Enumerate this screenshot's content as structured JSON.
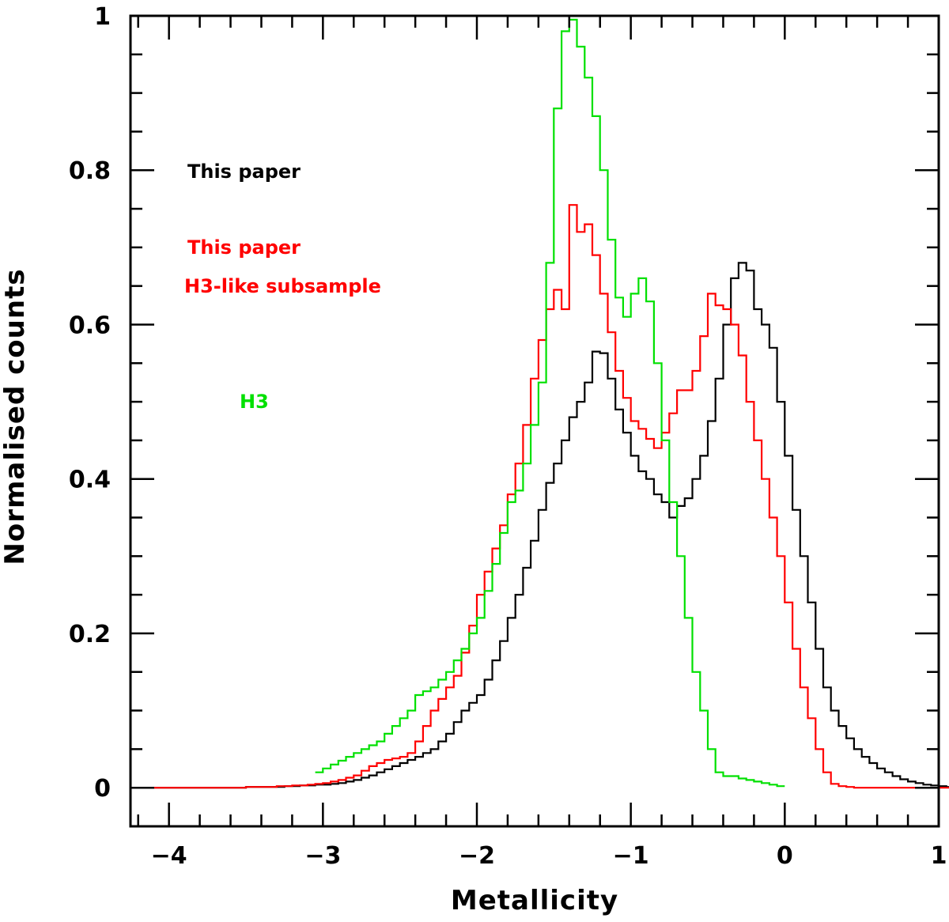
{
  "chart_data": {
    "type": "line",
    "step": true,
    "title": "",
    "xlabel": "Metallicity",
    "ylabel": "Normalised counts",
    "xlim": [
      -4.25,
      1.0
    ],
    "ylim": [
      -0.05,
      1.0
    ],
    "x_major_ticks": [
      -4,
      -3,
      -2,
      -1,
      0,
      1
    ],
    "x_tick_labels": [
      "−4",
      "−3",
      "−2",
      "−1",
      "0",
      "1"
    ],
    "x_minor_step": 0.2,
    "y_major_ticks": [
      0,
      0.2,
      0.4,
      0.6,
      0.8,
      1
    ],
    "y_tick_labels": [
      "0",
      "0.2",
      "0.4",
      "0.6",
      "0.8",
      "1"
    ],
    "y_minor_step": 0.05,
    "legend": [
      {
        "text": "This paper",
        "color": "#000000"
      },
      {
        "text": "This paper",
        "color": "#ff0000"
      },
      {
        "text": "H3-like subsample",
        "color": "#ff0000"
      },
      {
        "text": "H3",
        "color": "#00e000"
      }
    ],
    "series": [
      {
        "name": "This paper",
        "color": "#000000",
        "bin_width": 0.05,
        "x_start": -4.15,
        "values": [
          0,
          0,
          0,
          0,
          0,
          0,
          0,
          0,
          0,
          0,
          0,
          0,
          0,
          0.001,
          0.001,
          0.001,
          0.001,
          0.001,
          0.002,
          0.002,
          0.003,
          0.003,
          0.004,
          0.004,
          0.005,
          0.006,
          0.008,
          0.01,
          0.013,
          0.016,
          0.02,
          0.024,
          0.028,
          0.032,
          0.036,
          0.04,
          0.045,
          0.05,
          0.06,
          0.07,
          0.085,
          0.1,
          0.11,
          0.12,
          0.14,
          0.165,
          0.19,
          0.22,
          0.25,
          0.285,
          0.32,
          0.36,
          0.395,
          0.42,
          0.45,
          0.48,
          0.5,
          0.525,
          0.565,
          0.563,
          0.53,
          0.49,
          0.46,
          0.43,
          0.41,
          0.4,
          0.38,
          0.37,
          0.35,
          0.365,
          0.375,
          0.4,
          0.43,
          0.475,
          0.53,
          0.6,
          0.66,
          0.68,
          0.67,
          0.62,
          0.6,
          0.57,
          0.5,
          0.43,
          0.36,
          0.3,
          0.24,
          0.18,
          0.13,
          0.1,
          0.08,
          0.064,
          0.05,
          0.04,
          0.032,
          0.025,
          0.02,
          0.015,
          0.011,
          0.008,
          0.006,
          0.004,
          0.003,
          0.002,
          0.001,
          0.0005,
          0
        ]
      },
      {
        "name": "This paper — H3-like subsample",
        "color": "#ff0000",
        "bin_width": 0.05,
        "x_start": -4.15,
        "values": [
          0,
          0,
          0,
          0,
          0,
          0,
          0,
          0,
          0,
          0,
          0,
          0,
          0,
          0.001,
          0.001,
          0.001,
          0.001,
          0.002,
          0.002,
          0.003,
          0.003,
          0.004,
          0.005,
          0.006,
          0.008,
          0.01,
          0.013,
          0.016,
          0.022,
          0.028,
          0.032,
          0.036,
          0.038,
          0.04,
          0.045,
          0.06,
          0.08,
          0.1,
          0.115,
          0.13,
          0.145,
          0.175,
          0.21,
          0.25,
          0.28,
          0.31,
          0.34,
          0.38,
          0.42,
          0.47,
          0.53,
          0.58,
          0.62,
          0.645,
          0.62,
          0.755,
          0.72,
          0.73,
          0.69,
          0.64,
          0.59,
          0.54,
          0.505,
          0.475,
          0.465,
          0.452,
          0.44,
          0.46,
          0.485,
          0.515,
          0.515,
          0.54,
          0.585,
          0.64,
          0.625,
          0.62,
          0.6,
          0.56,
          0.5,
          0.45,
          0.4,
          0.35,
          0.3,
          0.24,
          0.18,
          0.13,
          0.09,
          0.05,
          0.02,
          0.005,
          0.002,
          0.001,
          0,
          0,
          0,
          0,
          0,
          0,
          0,
          0,
          0,
          0,
          0,
          0,
          0,
          0
        ]
      },
      {
        "name": "H3",
        "color": "#00e000",
        "bin_width": 0.05,
        "x_start": -3.05,
        "values": [
          0.02,
          0.025,
          0.03,
          0.035,
          0.04,
          0.045,
          0.05,
          0.055,
          0.06,
          0.07,
          0.08,
          0.09,
          0.1,
          0.12,
          0.125,
          0.13,
          0.14,
          0.15,
          0.165,
          0.18,
          0.2,
          0.22,
          0.255,
          0.29,
          0.33,
          0.37,
          0.385,
          0.42,
          0.47,
          0.525,
          0.68,
          0.88,
          0.98,
          0.995,
          0.96,
          0.92,
          0.87,
          0.8,
          0.71,
          0.635,
          0.61,
          0.64,
          0.66,
          0.63,
          0.55,
          0.45,
          0.37,
          0.3,
          0.22,
          0.15,
          0.1,
          0.05,
          0.02,
          0.015,
          0.015,
          0.012,
          0.01,
          0.008,
          0.006,
          0.004,
          0.002
        ]
      }
    ]
  }
}
